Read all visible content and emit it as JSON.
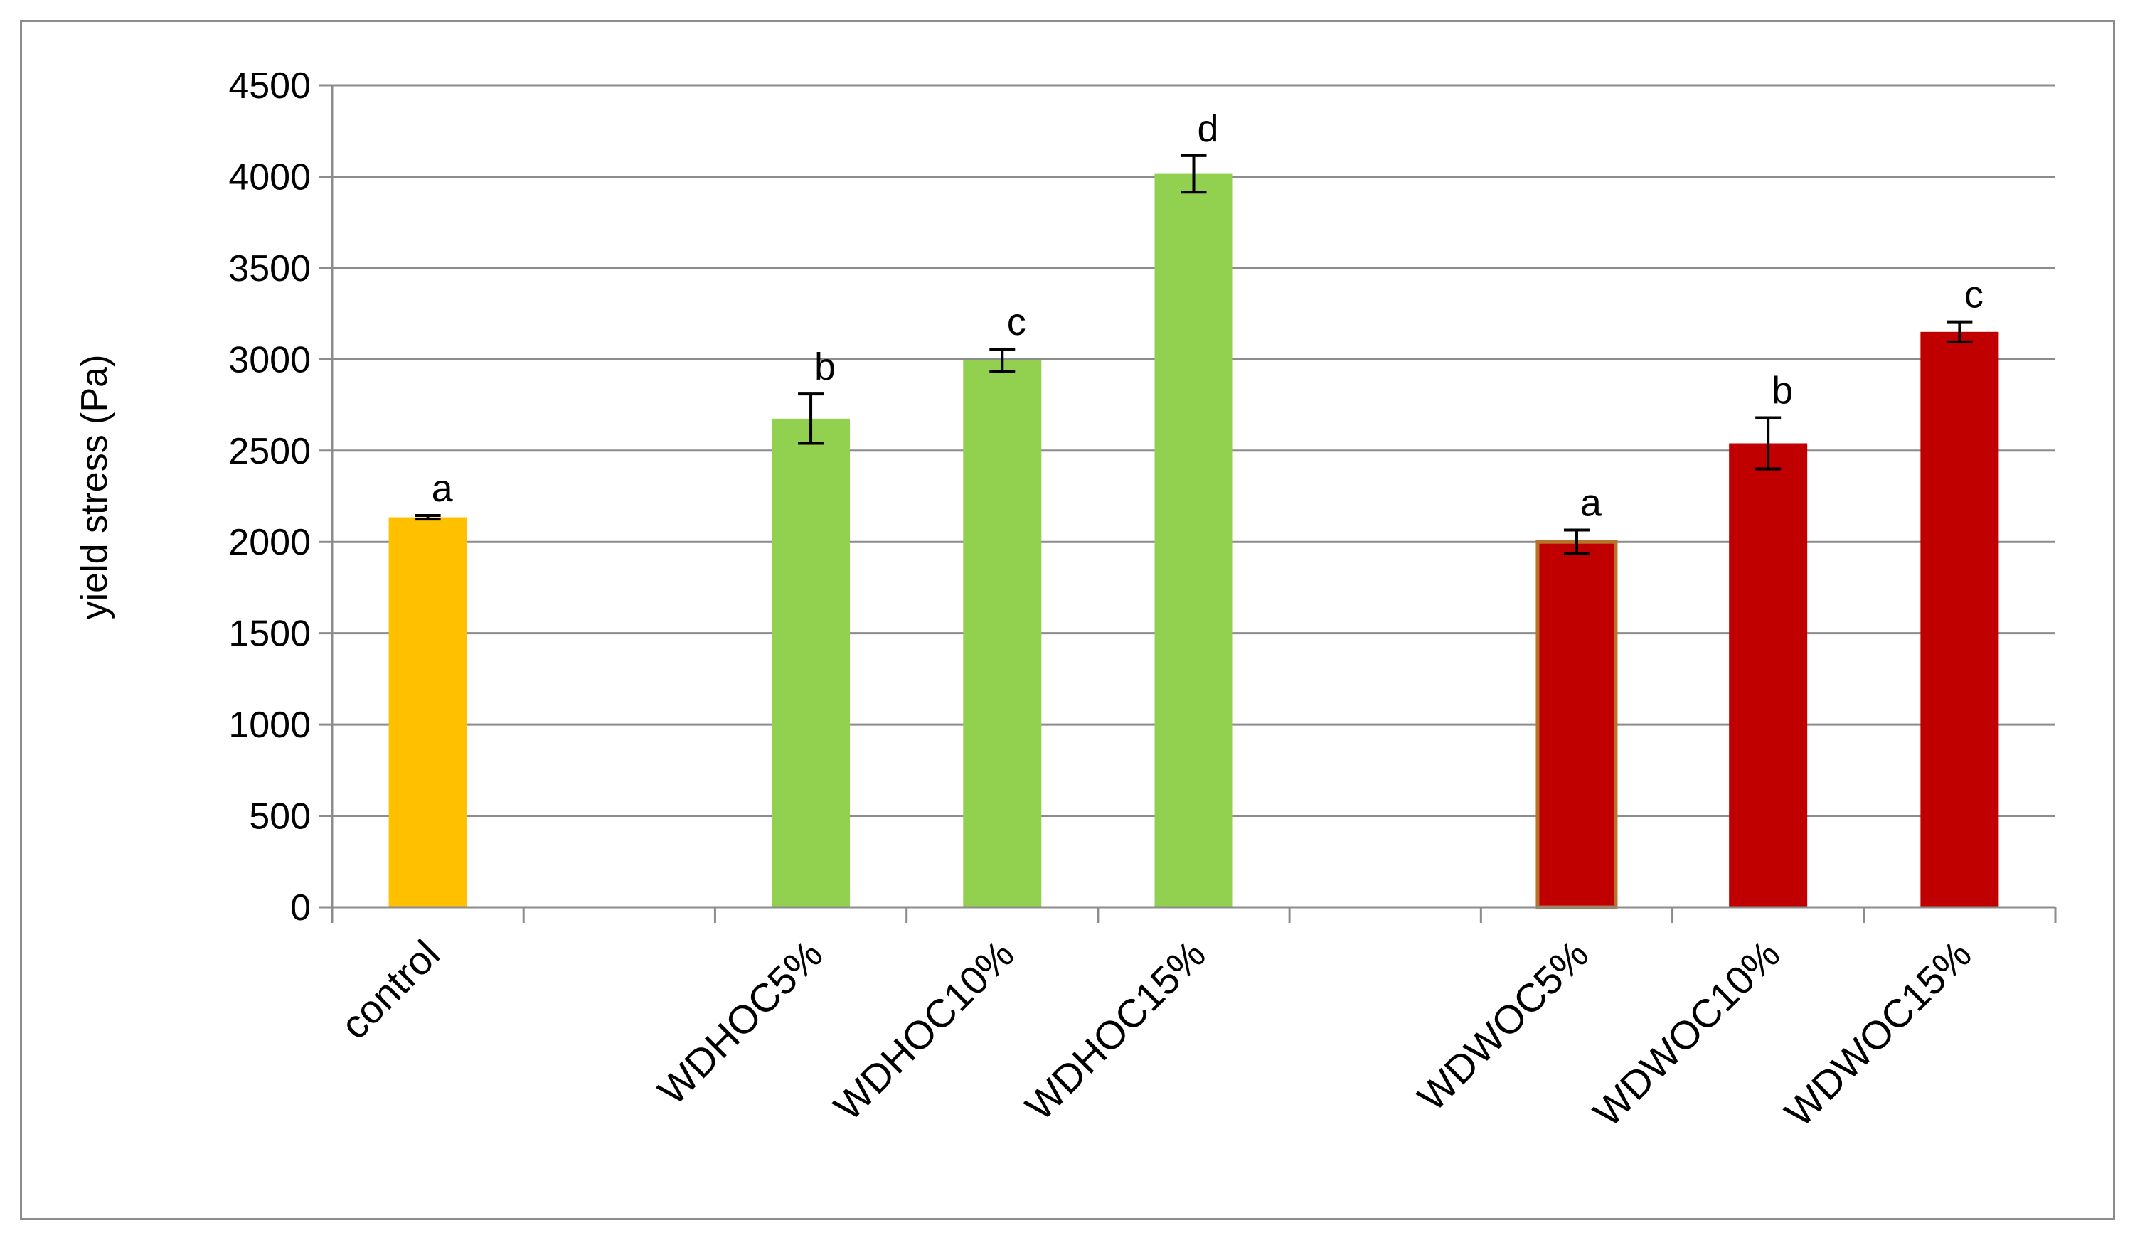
{
  "chart_data": {
    "type": "bar",
    "title": "",
    "xlabel": "",
    "ylabel": "yield stress (Pa)",
    "ylim": [
      0,
      4500
    ],
    "yticks": [
      0,
      500,
      1000,
      1500,
      2000,
      2500,
      3000,
      3500,
      4000,
      4500
    ],
    "grid": true,
    "legend": "none",
    "categories": [
      "control",
      "",
      "WDHOC5%",
      "WDHOC10%",
      "WDHOC15%",
      "",
      "WDWOC5%",
      "WDWOC10%",
      "WDWOC15%"
    ],
    "values": [
      2135,
      null,
      2675,
      2995,
      4015,
      null,
      2000,
      2540,
      3150
    ],
    "errors": [
      10,
      null,
      135,
      60,
      100,
      null,
      65,
      140,
      55
    ],
    "significance_labels": [
      "a",
      "",
      "b",
      "c",
      "d",
      "",
      "a",
      "b",
      "c"
    ],
    "colors": [
      "#ffc000",
      null,
      "#92d050",
      "#92d050",
      "#92d050",
      null,
      "#c00000",
      "#c00000",
      "#c00000"
    ],
    "grid_color": "#8c8c8c",
    "axis_color": "#8c8c8c"
  }
}
